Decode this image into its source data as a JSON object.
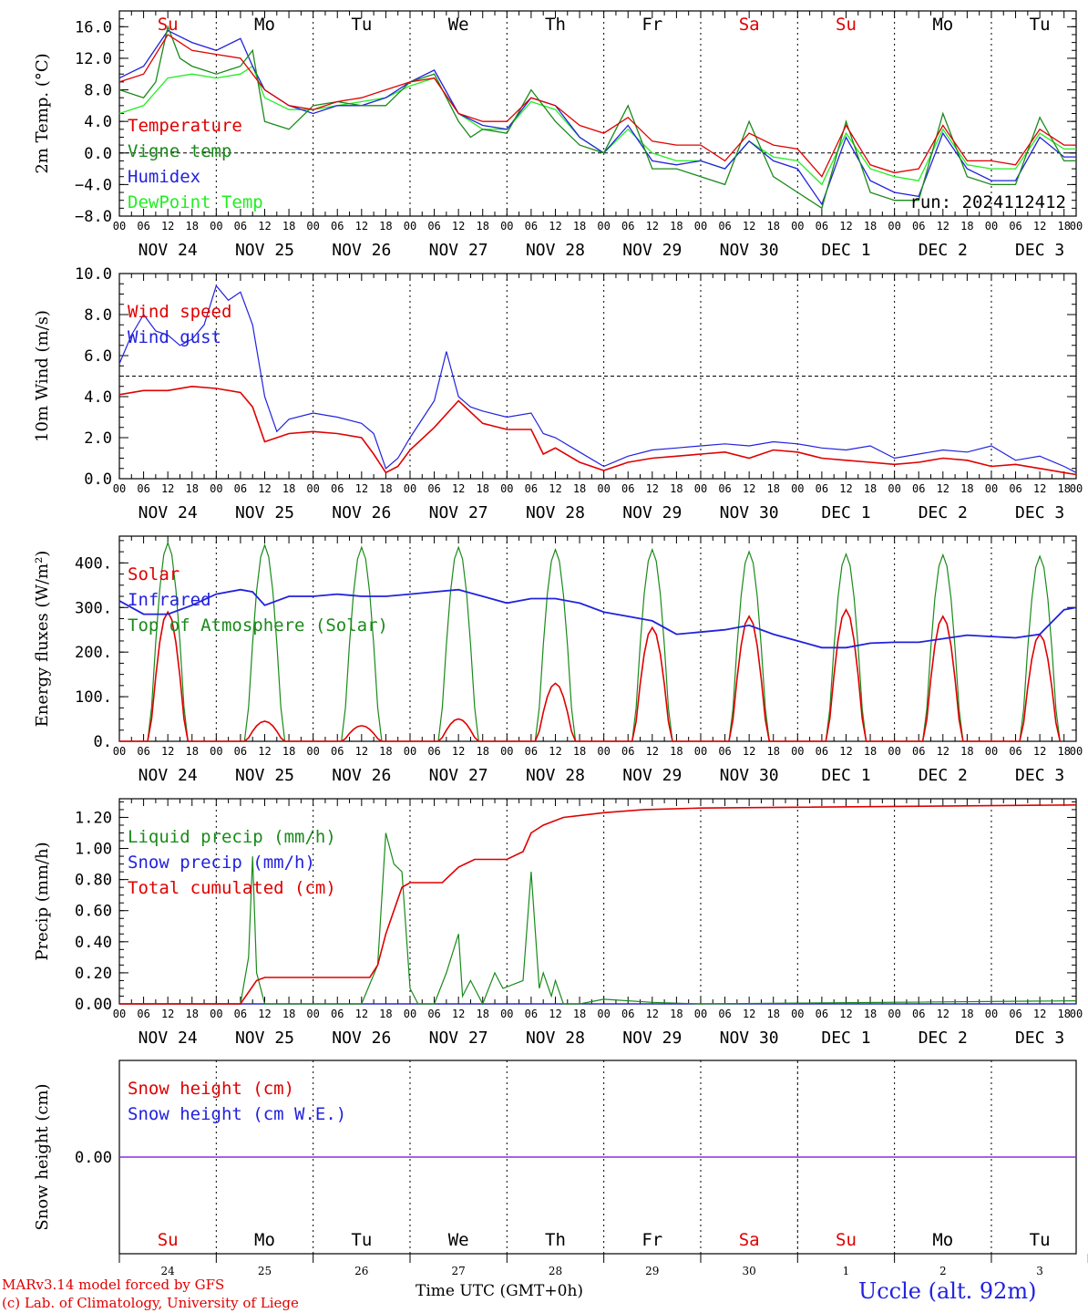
{
  "chart_data": [
    {
      "type": "line",
      "ylabel": "2m Temp. (°C)",
      "ylim": [
        -8,
        18
      ],
      "yticks": [
        16.0,
        12.0,
        8.0,
        4.0,
        0.0,
        -4.0,
        -8.0
      ],
      "ytick_labels": [
        "16.0",
        "12.0",
        "8.0",
        "4.0",
        "0.0",
        "−4.0",
        "−8.0"
      ],
      "reference_line": 0,
      "annotation": "run: 2024112412",
      "legend_position": "left",
      "series": [
        {
          "name": "Temperature",
          "color": "#e00000",
          "x": [
            0,
            6,
            12,
            15,
            18,
            24,
            30,
            33,
            36,
            42,
            48,
            54,
            60,
            66,
            72,
            78,
            84,
            90,
            96,
            102,
            108,
            114,
            120,
            126,
            132,
            138,
            144,
            150,
            156,
            162,
            168,
            174,
            180,
            186,
            192,
            198,
            204,
            210,
            216,
            222,
            228,
            234,
            237
          ],
          "y": [
            9,
            10,
            15,
            14,
            13,
            12.5,
            12,
            10,
            8,
            6,
            5.5,
            6.5,
            7,
            8,
            9,
            9.5,
            5,
            4,
            4,
            7,
            6,
            3.5,
            2.5,
            4.5,
            1.5,
            1,
            1,
            -1,
            2.5,
            1,
            0.5,
            -3,
            3.5,
            -1.5,
            -2.5,
            -2,
            3.5,
            -1,
            -1,
            -1.5,
            3,
            1,
            1
          ]
        },
        {
          "name": "Vigne temp",
          "color": "#1a8a1a",
          "x": [
            0,
            6,
            9,
            12,
            15,
            18,
            24,
            30,
            33,
            36,
            42,
            48,
            54,
            60,
            66,
            72,
            78,
            84,
            87,
            90,
            96,
            102,
            108,
            114,
            120,
            126,
            132,
            138,
            144,
            150,
            156,
            162,
            168,
            174,
            180,
            186,
            192,
            198,
            204,
            210,
            216,
            222,
            228,
            234,
            237
          ],
          "y": [
            8,
            7,
            9,
            16,
            12,
            11,
            10,
            11,
            13,
            4,
            3,
            6,
            6.5,
            6,
            6,
            9,
            10,
            4,
            2,
            3,
            2.5,
            8,
            4,
            1,
            0,
            6,
            -2,
            -2,
            -3,
            -4,
            4,
            -3,
            -5,
            -7,
            4,
            -5,
            -6,
            -6,
            5,
            -3,
            -4,
            -4,
            4.5,
            -1,
            -1
          ]
        },
        {
          "name": "Humidex",
          "color": "#2222dd",
          "x": [
            0,
            6,
            12,
            18,
            24,
            30,
            33,
            36,
            42,
            48,
            54,
            60,
            66,
            72,
            78,
            84,
            90,
            96,
            102,
            108,
            114,
            120,
            126,
            132,
            138,
            144,
            150,
            156,
            162,
            168,
            174,
            180,
            186,
            192,
            198,
            204,
            210,
            216,
            222,
            228,
            234,
            237
          ],
          "y": [
            9.5,
            11,
            15.5,
            14,
            13,
            14.5,
            11,
            8,
            6,
            5,
            6,
            6,
            7,
            9,
            10.5,
            5,
            3.5,
            3,
            7,
            6,
            2,
            0,
            3.5,
            -1,
            -1.5,
            -1,
            -2,
            1.5,
            -1,
            -2,
            -6.5,
            2,
            -3.5,
            -5,
            -5.5,
            2.5,
            -2,
            -3.5,
            -3.5,
            2,
            -0.5,
            -0.5
          ]
        },
        {
          "name": "DewPoint Temp",
          "color": "#22ee22",
          "x": [
            0,
            6,
            12,
            18,
            24,
            30,
            33,
            36,
            42,
            48,
            54,
            60,
            66,
            72,
            78,
            84,
            90,
            96,
            102,
            108,
            114,
            120,
            126,
            132,
            138,
            144,
            150,
            156,
            162,
            168,
            174,
            180,
            186,
            192,
            198,
            204,
            210,
            216,
            222,
            228,
            234,
            237
          ],
          "y": [
            5,
            6,
            9.5,
            10,
            9.5,
            10,
            11,
            7,
            5.5,
            5.5,
            6,
            6.5,
            7,
            8.5,
            9.5,
            5,
            3,
            3,
            6.5,
            5.5,
            2,
            0,
            3,
            0,
            -1,
            -1,
            -2,
            1.5,
            -0.5,
            -1,
            -4,
            2.5,
            -2,
            -3,
            -3.5,
            3,
            -1.5,
            -2,
            -2,
            2.5,
            0.5,
            0.5
          ]
        }
      ]
    },
    {
      "type": "line",
      "ylabel": "10m Wind (m/s)",
      "ylim": [
        0,
        10
      ],
      "yticks": [
        10.0,
        8.0,
        6.0,
        4.0,
        2.0,
        0.0
      ],
      "ytick_labels": [
        "10.0",
        "8.0",
        "6.0",
        "4.0",
        "2.0",
        "0.0"
      ],
      "reference_line": 5,
      "legend_position": "top-left",
      "series": [
        {
          "name": "Wind speed",
          "color": "#e00000",
          "x": [
            0,
            6,
            12,
            18,
            24,
            30,
            33,
            36,
            42,
            48,
            54,
            60,
            63,
            66,
            69,
            72,
            78,
            84,
            90,
            96,
            102,
            105,
            108,
            114,
            120,
            126,
            132,
            138,
            144,
            150,
            156,
            162,
            168,
            174,
            180,
            186,
            192,
            198,
            204,
            210,
            216,
            222,
            228,
            234,
            237
          ],
          "y": [
            4.1,
            4.3,
            4.3,
            4.5,
            4.4,
            4.2,
            3.5,
            1.8,
            2.2,
            2.3,
            2.2,
            2.0,
            1.2,
            0.3,
            0.6,
            1.4,
            2.5,
            3.8,
            2.7,
            2.4,
            2.4,
            1.2,
            1.5,
            0.8,
            0.4,
            0.8,
            1.0,
            1.1,
            1.2,
            1.3,
            1.0,
            1.4,
            1.3,
            1.0,
            0.9,
            0.8,
            0.7,
            0.8,
            1.0,
            0.9,
            0.6,
            0.7,
            0.5,
            0.3,
            0.2
          ]
        },
        {
          "name": "Wind gust",
          "color": "#2222dd",
          "x": [
            0,
            3,
            6,
            9,
            12,
            15,
            18,
            21,
            24,
            27,
            30,
            33,
            36,
            39,
            42,
            48,
            54,
            60,
            63,
            66,
            69,
            72,
            78,
            81,
            84,
            87,
            90,
            96,
            102,
            105,
            108,
            114,
            120,
            126,
            132,
            138,
            144,
            150,
            156,
            162,
            168,
            174,
            180,
            186,
            192,
            198,
            204,
            210,
            216,
            222,
            228,
            234,
            237
          ],
          "y": [
            5.6,
            7.0,
            8.0,
            7.2,
            7.0,
            6.5,
            6.8,
            7.5,
            9.4,
            8.7,
            9.1,
            7.5,
            4.0,
            2.3,
            2.9,
            3.2,
            3.0,
            2.7,
            2.2,
            0.5,
            1.0,
            2.0,
            3.8,
            6.2,
            4.0,
            3.5,
            3.3,
            3.0,
            3.2,
            2.2,
            2.0,
            1.3,
            0.6,
            1.1,
            1.4,
            1.5,
            1.6,
            1.7,
            1.6,
            1.8,
            1.7,
            1.5,
            1.4,
            1.6,
            1.0,
            1.2,
            1.4,
            1.3,
            1.6,
            0.9,
            1.1,
            0.6,
            0.3
          ]
        }
      ]
    },
    {
      "type": "line",
      "ylabel": "Energy fluxes (W/m²)",
      "ylim": [
        0,
        460
      ],
      "yticks": [
        400,
        300,
        200,
        100,
        0
      ],
      "ytick_labels": [
        "400.",
        "300.",
        "200.",
        "100.",
        "0."
      ],
      "legend_position": "top-left",
      "series": [
        {
          "name": "Solar",
          "color": "#e00000",
          "peaks": [
            290,
            45,
            35,
            50,
            130,
            255,
            280,
            295,
            280,
            240
          ]
        },
        {
          "name": "Infrared",
          "color": "#2222dd",
          "x": [
            0,
            6,
            12,
            18,
            24,
            30,
            33,
            36,
            42,
            48,
            54,
            60,
            66,
            72,
            78,
            84,
            90,
            96,
            102,
            108,
            114,
            120,
            126,
            132,
            138,
            144,
            150,
            156,
            162,
            168,
            174,
            180,
            186,
            192,
            198,
            204,
            210,
            216,
            222,
            228,
            234,
            237
          ],
          "y": [
            315,
            285,
            285,
            305,
            330,
            340,
            335,
            305,
            325,
            325,
            330,
            325,
            325,
            330,
            335,
            340,
            325,
            310,
            320,
            320,
            310,
            290,
            280,
            270,
            240,
            245,
            250,
            260,
            240,
            225,
            210,
            210,
            220,
            222,
            222,
            230,
            238,
            235,
            232,
            240,
            295,
            300
          ]
        },
        {
          "name": "Top of Atmosphere (Solar)",
          "color": "#1a8a1a",
          "peaks": [
            445,
            440,
            435,
            435,
            430,
            430,
            425,
            420,
            418,
            415
          ]
        }
      ]
    },
    {
      "type": "line",
      "ylabel": "Precip (mm/h)",
      "ylim": [
        0,
        1.32
      ],
      "yticks": [
        1.2,
        1.0,
        0.8,
        0.6,
        0.4,
        0.2,
        0.0
      ],
      "ytick_labels": [
        "1.20",
        "1.00",
        "0.80",
        "0.60",
        "0.40",
        "0.20",
        "0.00"
      ],
      "legend_position": "top-left",
      "series": [
        {
          "name": "Liquid precip (mm/h)",
          "color": "#1a8a1a",
          "x": [
            0,
            30,
            32,
            33,
            34,
            36,
            38,
            40,
            48,
            60,
            64,
            66,
            68,
            70,
            72,
            74,
            76,
            78,
            81,
            84,
            85,
            87,
            90,
            93,
            95,
            100,
            102,
            104,
            105,
            107,
            108,
            110,
            114,
            120,
            132,
            144,
            237
          ],
          "y": [
            0,
            0,
            0.3,
            0.95,
            0.2,
            0,
            0,
            0,
            0,
            0,
            0.25,
            1.1,
            0.9,
            0.85,
            0.1,
            0,
            0,
            0,
            0.2,
            0.45,
            0.05,
            0.15,
            0,
            0.2,
            0.1,
            0.15,
            0.85,
            0.1,
            0.2,
            0.05,
            0.15,
            0,
            0,
            0.03,
            0.01,
            0,
            0.02
          ]
        },
        {
          "name": "Snow precip (mm/h)",
          "color": "#2222dd",
          "x": [
            0,
            237
          ],
          "y": [
            0,
            0
          ]
        },
        {
          "name": "Total cumulated (cm)",
          "color": "#e00000",
          "x": [
            0,
            30,
            34,
            36,
            48,
            62,
            64,
            66,
            70,
            72,
            80,
            84,
            88,
            96,
            100,
            102,
            105,
            110,
            120,
            130,
            144,
            237
          ],
          "y": [
            0,
            0,
            0.15,
            0.17,
            0.17,
            0.17,
            0.25,
            0.45,
            0.75,
            0.78,
            0.78,
            0.88,
            0.93,
            0.93,
            0.98,
            1.1,
            1.15,
            1.2,
            1.23,
            1.25,
            1.26,
            1.28
          ]
        }
      ]
    },
    {
      "type": "line",
      "ylabel": "Snow height (cm)",
      "ylim": [
        -1,
        1
      ],
      "yticks": [
        0.0
      ],
      "ytick_labels": [
        "0.00"
      ],
      "legend_position": "top-left",
      "series": [
        {
          "name": "Snow height (cm)",
          "color": "#e00000",
          "x": [
            0,
            237
          ],
          "y": [
            0,
            0
          ]
        },
        {
          "name": "Snow height (cm W.E.)",
          "color": "#2222dd",
          "x": [
            0,
            237
          ],
          "y": [
            0,
            0
          ]
        }
      ]
    }
  ],
  "axes": {
    "day_labels": [
      "NOV 24",
      "NOV 25",
      "NOV 26",
      "NOV 27",
      "NOV 28",
      "NOV 29",
      "NOV 30",
      "DEC  1",
      "DEC  2",
      "DEC  3"
    ],
    "hour_labels": [
      "00",
      "06",
      "12",
      "18"
    ],
    "final_hour_label": "00",
    "weekdays": [
      {
        "label": "Su",
        "color": "#e00000"
      },
      {
        "label": "Mo",
        "color": "#000000"
      },
      {
        "label": "Tu",
        "color": "#000000"
      },
      {
        "label": "We",
        "color": "#000000"
      },
      {
        "label": "Th",
        "color": "#000000"
      },
      {
        "label": "Fr",
        "color": "#000000"
      },
      {
        "label": "Sa",
        "color": "#e00000"
      },
      {
        "label": "Su",
        "color": "#e00000"
      },
      {
        "label": "Mo",
        "color": "#000000"
      },
      {
        "label": "Tu",
        "color": "#000000"
      }
    ],
    "day_numbers": [
      "24",
      "25",
      "26",
      "27",
      "28",
      "29",
      "30",
      "1",
      "2",
      "3"
    ]
  },
  "footer": {
    "model": "MARv3.14 model forced by GFS",
    "lab": "(c) Lab. of Climatology, University of Liege",
    "xlabel": "Time UTC (GMT+0h)",
    "station": "Uccle (alt. 92m)"
  }
}
